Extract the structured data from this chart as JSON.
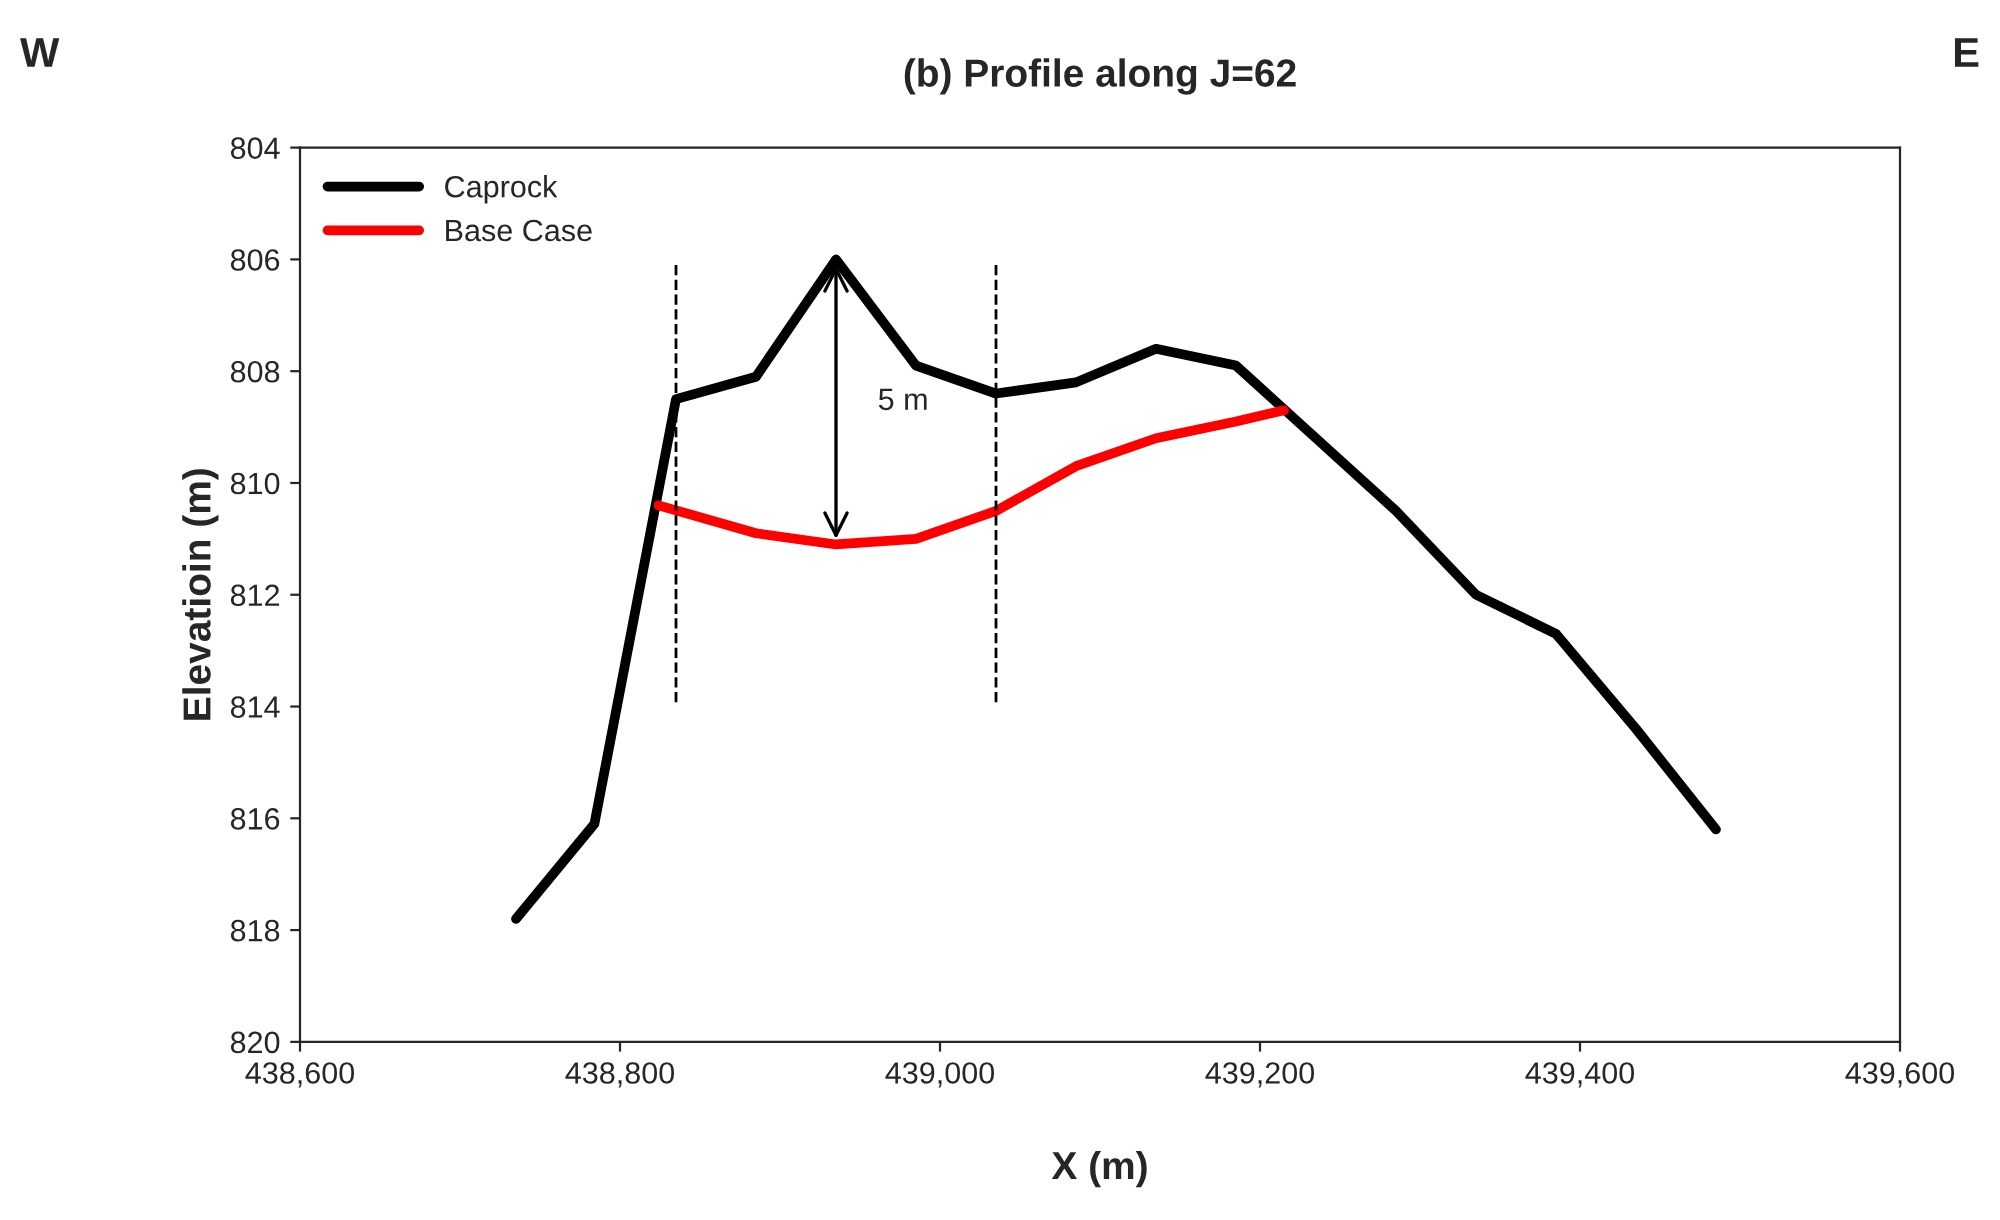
{
  "chart_data": {
    "type": "line",
    "title": "(b) Profile along J=62",
    "xlabel": "X (m)",
    "ylabel": "Elevatioin (m)",
    "annotations": [
      "W",
      "E",
      "5 m"
    ],
    "series": [
      {
        "name": "Caprock",
        "color": "#000000",
        "x": [
          438735,
          438784,
          438835,
          438885,
          438935,
          438985,
          439035,
          439085,
          439135,
          439185,
          439235,
          439285,
          439335,
          439385,
          439435,
          439485
        ],
        "values": [
          817.8,
          816.1,
          808.5,
          808.1,
          806.0,
          807.9,
          808.4,
          808.2,
          807.6,
          807.9,
          809.2,
          810.5,
          812.0,
          812.7,
          814.4,
          816.2
        ]
      },
      {
        "name": "Base Case",
        "color": "#ff0000",
        "x": [
          438824,
          438885,
          438935,
          438985,
          439035,
          439085,
          439135,
          439185,
          439215
        ],
        "values": [
          810.4,
          810.9,
          811.1,
          811.0,
          810.5,
          809.7,
          809.2,
          808.9,
          808.7
        ]
      },
      {
        "color": "#000000",
        "line_style": "dashed",
        "x": [
          438835,
          438835
        ],
        "values": [
          806.1,
          814.0
        ]
      },
      {
        "color": "#000000",
        "line_style": "dashed",
        "x": [
          439035,
          439035
        ],
        "values": [
          806.1,
          814.0
        ]
      }
    ],
    "xlim": [
      438600,
      439600
    ],
    "xticks": [
      {
        "value": 438600,
        "label": "438,600"
      },
      {
        "value": 438800,
        "label": "438,800"
      },
      {
        "value": 439000,
        "label": "439,000"
      },
      {
        "value": 439200,
        "label": "439,200"
      },
      {
        "value": 439400,
        "label": "439,400"
      },
      {
        "value": 439600,
        "label": "439,600"
      }
    ],
    "ylim": [
      820,
      804
    ],
    "yticks": [
      804,
      806,
      808,
      810,
      812,
      814,
      816,
      818,
      820
    ],
    "grid": false,
    "legend": "top left"
  }
}
